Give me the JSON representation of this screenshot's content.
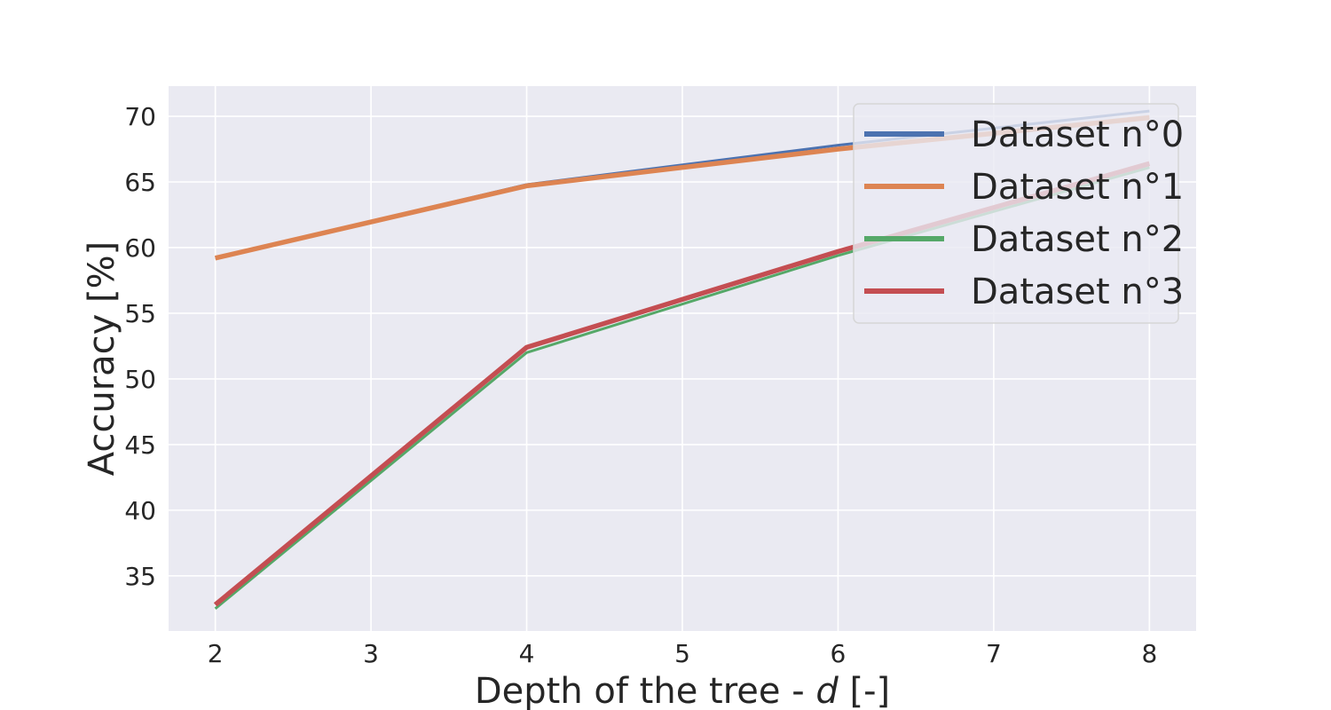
{
  "chart_data": {
    "type": "line",
    "title": "",
    "xlabel_prefix": "Depth of the tree - ",
    "xlabel_var": "d",
    "xlabel_suffix": " [-]",
    "ylabel": "Accuracy [%]",
    "x": [
      2,
      4,
      6,
      8
    ],
    "xlim": [
      1.7,
      8.3
    ],
    "ylim": [
      30.8,
      72.3
    ],
    "xticks": [
      2,
      3,
      4,
      5,
      6,
      7,
      8
    ],
    "yticks": [
      35,
      40,
      45,
      50,
      55,
      60,
      65,
      70
    ],
    "grid": true,
    "legend_position": "top-right",
    "series": [
      {
        "name": "Dataset n°0",
        "color": "#4c72b0",
        "values": [
          59.2,
          64.8,
          67.8,
          70.4
        ]
      },
      {
        "name": "Dataset n°1",
        "color": "#dd8452",
        "values": [
          59.2,
          64.7,
          67.5,
          69.9
        ]
      },
      {
        "name": "Dataset n°2",
        "color": "#55a868",
        "values": [
          32.5,
          52.0,
          59.4,
          66.1
        ]
      },
      {
        "name": "Dataset n°3",
        "color": "#c44e52",
        "values": [
          32.8,
          52.4,
          59.7,
          66.4
        ]
      }
    ]
  }
}
